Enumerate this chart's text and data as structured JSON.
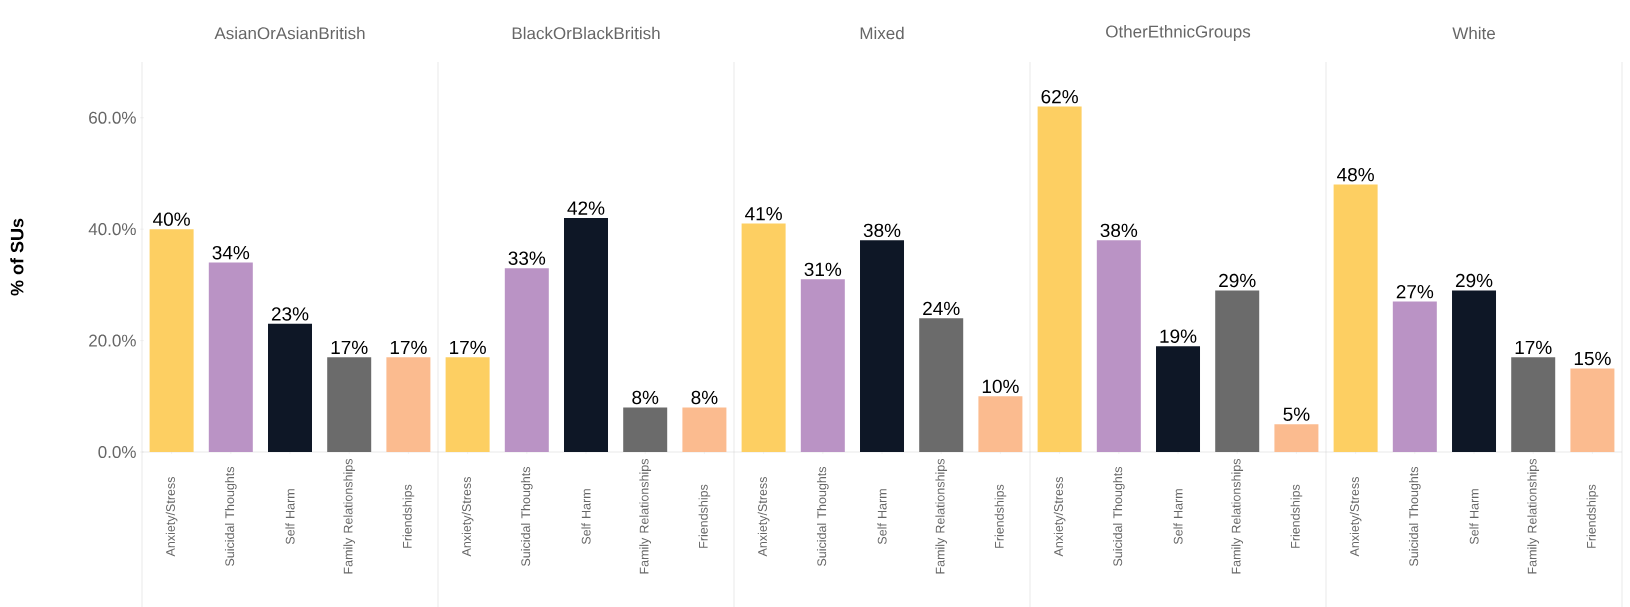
{
  "chart_data": [
    {
      "type": "bar",
      "title": "AsianOrAsianBritish",
      "ylabel": "% of SUs",
      "categories": [
        "Anxiety/Stress",
        "Suicidal Thoughts",
        "Self Harm",
        "Family Relationships",
        "Friendships"
      ],
      "values": [
        40,
        34,
        23,
        17,
        17
      ],
      "value_labels": [
        "40%",
        "34%",
        "23%",
        "17%",
        "17%"
      ],
      "colors": [
        "#fdcf62",
        "#ba93c5",
        "#0e1726",
        "#6b6b6b",
        "#fbbb8f"
      ],
      "ylim": [
        0,
        70
      ],
      "yticks": [
        {
          "value": 0,
          "label": "0.0%"
        },
        {
          "value": 20,
          "label": "20.0%"
        },
        {
          "value": 40,
          "label": "40.0%"
        },
        {
          "value": 60,
          "label": "60.0%"
        }
      ]
    },
    {
      "type": "bar",
      "title": "BlackOrBlackBritish",
      "categories": [
        "Anxiety/Stress",
        "Suicidal Thoughts",
        "Self Harm",
        "Family Relationships",
        "Friendships"
      ],
      "values": [
        17,
        33,
        42,
        8,
        8
      ],
      "value_labels": [
        "17%",
        "33%",
        "42%",
        "8%",
        "8%"
      ],
      "colors": [
        "#fdcf62",
        "#ba93c5",
        "#0e1726",
        "#6b6b6b",
        "#fbbb8f"
      ],
      "ylim": [
        0,
        70
      ],
      "tick_labels": "x"
    },
    {
      "type": "bar",
      "title": "Mixed",
      "categories": [
        "Anxiety/Stress",
        "Suicidal Thoughts",
        "Self Harm",
        "Family Relationships",
        "Friendships"
      ],
      "values": [
        41,
        31,
        38,
        24,
        10
      ],
      "value_labels": [
        "41%",
        "31%",
        "38%",
        "24%",
        "10%"
      ],
      "colors": [
        "#fdcf62",
        "#ba93c5",
        "#0e1726",
        "#6b6b6b",
        "#fbbb8f"
      ],
      "ylim": [
        0,
        70
      ],
      "tick_labels": "x"
    },
    {
      "type": "bar",
      "title": "OtherEthnicGroups",
      "categories": [
        "Anxiety/Stress",
        "Suicidal Thoughts",
        "Self Harm",
        "Family Relationships",
        "Friendships"
      ],
      "values": [
        62,
        38,
        19,
        29,
        5
      ],
      "value_labels": [
        "62%",
        "38%",
        "19%",
        "29%",
        "5%"
      ],
      "colors": [
        "#fdcf62",
        "#ba93c5",
        "#0e1726",
        "#6b6b6b",
        "#fbbb8f"
      ],
      "ylim": [
        0,
        70
      ],
      "tick_labels": "x"
    },
    {
      "type": "bar",
      "title": "White",
      "categories": [
        "Anxiety/Stress",
        "Suicidal Thoughts",
        "Self Harm",
        "Family Relationships",
        "Friendships"
      ],
      "values": [
        48,
        27,
        29,
        17,
        15
      ],
      "value_labels": [
        "48%",
        "27%",
        "29%",
        "17%",
        "15%"
      ],
      "colors": [
        "#fdcf62",
        "#ba93c5",
        "#0e1726",
        "#6b6b6b",
        "#fbbb8f"
      ],
      "ylim": [
        0,
        70
      ],
      "tick_labels": "x"
    }
  ]
}
